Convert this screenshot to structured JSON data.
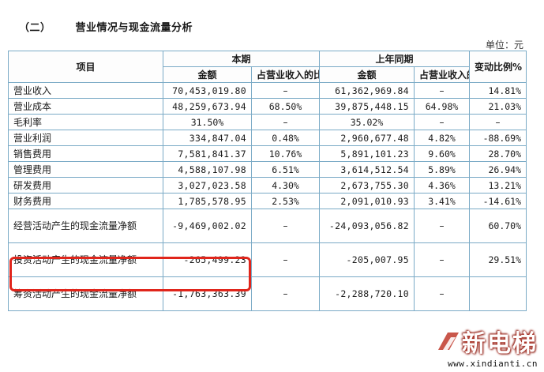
{
  "section": {
    "number": "（二）",
    "title": "营业情况与现金流量分析"
  },
  "unit": "单位：元",
  "headers": {
    "item": "项目",
    "current_period": "本期",
    "prior_period": "上年同期",
    "amount": "金额",
    "share_of_revenue": "占营业收入的比重%",
    "change_ratio": "变动比例%"
  },
  "rows": [
    {
      "name": "营业收入",
      "cur_amount": "70,453,019.80",
      "cur_pct": "–",
      "prev_amount": "61,362,969.84",
      "prev_pct": "–",
      "change": "14.81%"
    },
    {
      "name": "营业成本",
      "cur_amount": "48,259,673.94",
      "cur_pct": "68.50%",
      "prev_amount": "39,875,448.15",
      "prev_pct": "64.98%",
      "change": "21.03%"
    },
    {
      "name": "毛利率",
      "cur_amount": "31.50%",
      "cur_pct": "–",
      "prev_amount": "35.02%",
      "prev_pct": "–",
      "change": "–"
    },
    {
      "name": "营业利润",
      "cur_amount": "334,847.04",
      "cur_pct": "0.48%",
      "prev_amount": "2,960,677.48",
      "prev_pct": "4.82%",
      "change": "-88.69%"
    },
    {
      "name": "销售费用",
      "cur_amount": "7,581,841.37",
      "cur_pct": "10.76%",
      "prev_amount": "5,891,101.23",
      "prev_pct": "9.60%",
      "change": "28.70%"
    },
    {
      "name": "管理费用",
      "cur_amount": "4,588,107.98",
      "cur_pct": "6.51%",
      "prev_amount": "3,614,512.54",
      "prev_pct": "5.89%",
      "change": "26.94%"
    },
    {
      "name": "研发费用",
      "cur_amount": "3,027,023.58",
      "cur_pct": "4.30%",
      "prev_amount": "2,673,755.30",
      "prev_pct": "4.36%",
      "change": "13.21%"
    },
    {
      "name": "财务费用",
      "cur_amount": "1,785,578.95",
      "cur_pct": "2.53%",
      "prev_amount": "2,091,010.93",
      "prev_pct": "3.41%",
      "change": "-14.61%"
    }
  ],
  "cashflow_rows": [
    {
      "name": "经营活动产生的现金流量净额",
      "cur_amount": "-9,469,002.02",
      "cur_pct": "–",
      "prev_amount": "-24,093,056.82",
      "prev_pct": "–",
      "change": "60.70%"
    },
    {
      "name": "投资活动产生的现金流量净额",
      "cur_amount": "-265,499.23",
      "cur_pct": "–",
      "prev_amount": "-205,007.95",
      "prev_pct": "–",
      "change": "29.51%"
    },
    {
      "name": "筹资活动产生的现金流量净额",
      "cur_amount": "-1,763,363.39",
      "cur_pct": "–",
      "prev_amount": "-2,288,720.10",
      "prev_pct": "–",
      "change": ""
    }
  ],
  "watermark": {
    "brand": "新电梯",
    "url": "www.xindianti.cn"
  },
  "colors": {
    "border": "#7aaac6",
    "highlight": "#e0251b"
  }
}
